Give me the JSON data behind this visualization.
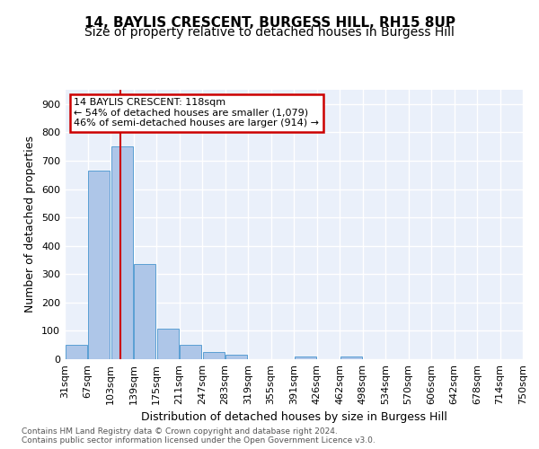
{
  "title1": "14, BAYLIS CRESCENT, BURGESS HILL, RH15 8UP",
  "title2": "Size of property relative to detached houses in Burgess Hill",
  "xlabel": "Distribution of detached houses by size in Burgess Hill",
  "ylabel": "Number of detached properties",
  "bin_labels": [
    "31sqm",
    "67sqm",
    "103sqm",
    "139sqm",
    "175sqm",
    "211sqm",
    "247sqm",
    "283sqm",
    "319sqm",
    "355sqm",
    "391sqm",
    "426sqm",
    "462sqm",
    "498sqm",
    "534sqm",
    "570sqm",
    "606sqm",
    "642sqm",
    "678sqm",
    "714sqm",
    "750sqm"
  ],
  "bar_heights": [
    50,
    665,
    750,
    335,
    108,
    50,
    25,
    16,
    0,
    0,
    8,
    0,
    8,
    0,
    0,
    0,
    0,
    0,
    0,
    0
  ],
  "bar_color": "#aec6e8",
  "bar_edge_color": "#5a9fd4",
  "bg_color": "#eaf0fa",
  "grid_color": "#ffffff",
  "annotation_text": "14 BAYLIS CRESCENT: 118sqm\n← 54% of detached houses are smaller (1,079)\n46% of semi-detached houses are larger (914) →",
  "annotation_box_color": "#ffffff",
  "annotation_box_edge": "#cc0000",
  "vline_color": "#cc0000",
  "property_size": 118,
  "bin_width": 36,
  "ylim": [
    0,
    950
  ],
  "yticks": [
    0,
    100,
    200,
    300,
    400,
    500,
    600,
    700,
    800,
    900
  ],
  "footer": "Contains HM Land Registry data © Crown copyright and database right 2024.\nContains public sector information licensed under the Open Government Licence v3.0.",
  "title_fontsize": 11,
  "subtitle_fontsize": 10,
  "tick_fontsize": 8,
  "label_fontsize": 9
}
